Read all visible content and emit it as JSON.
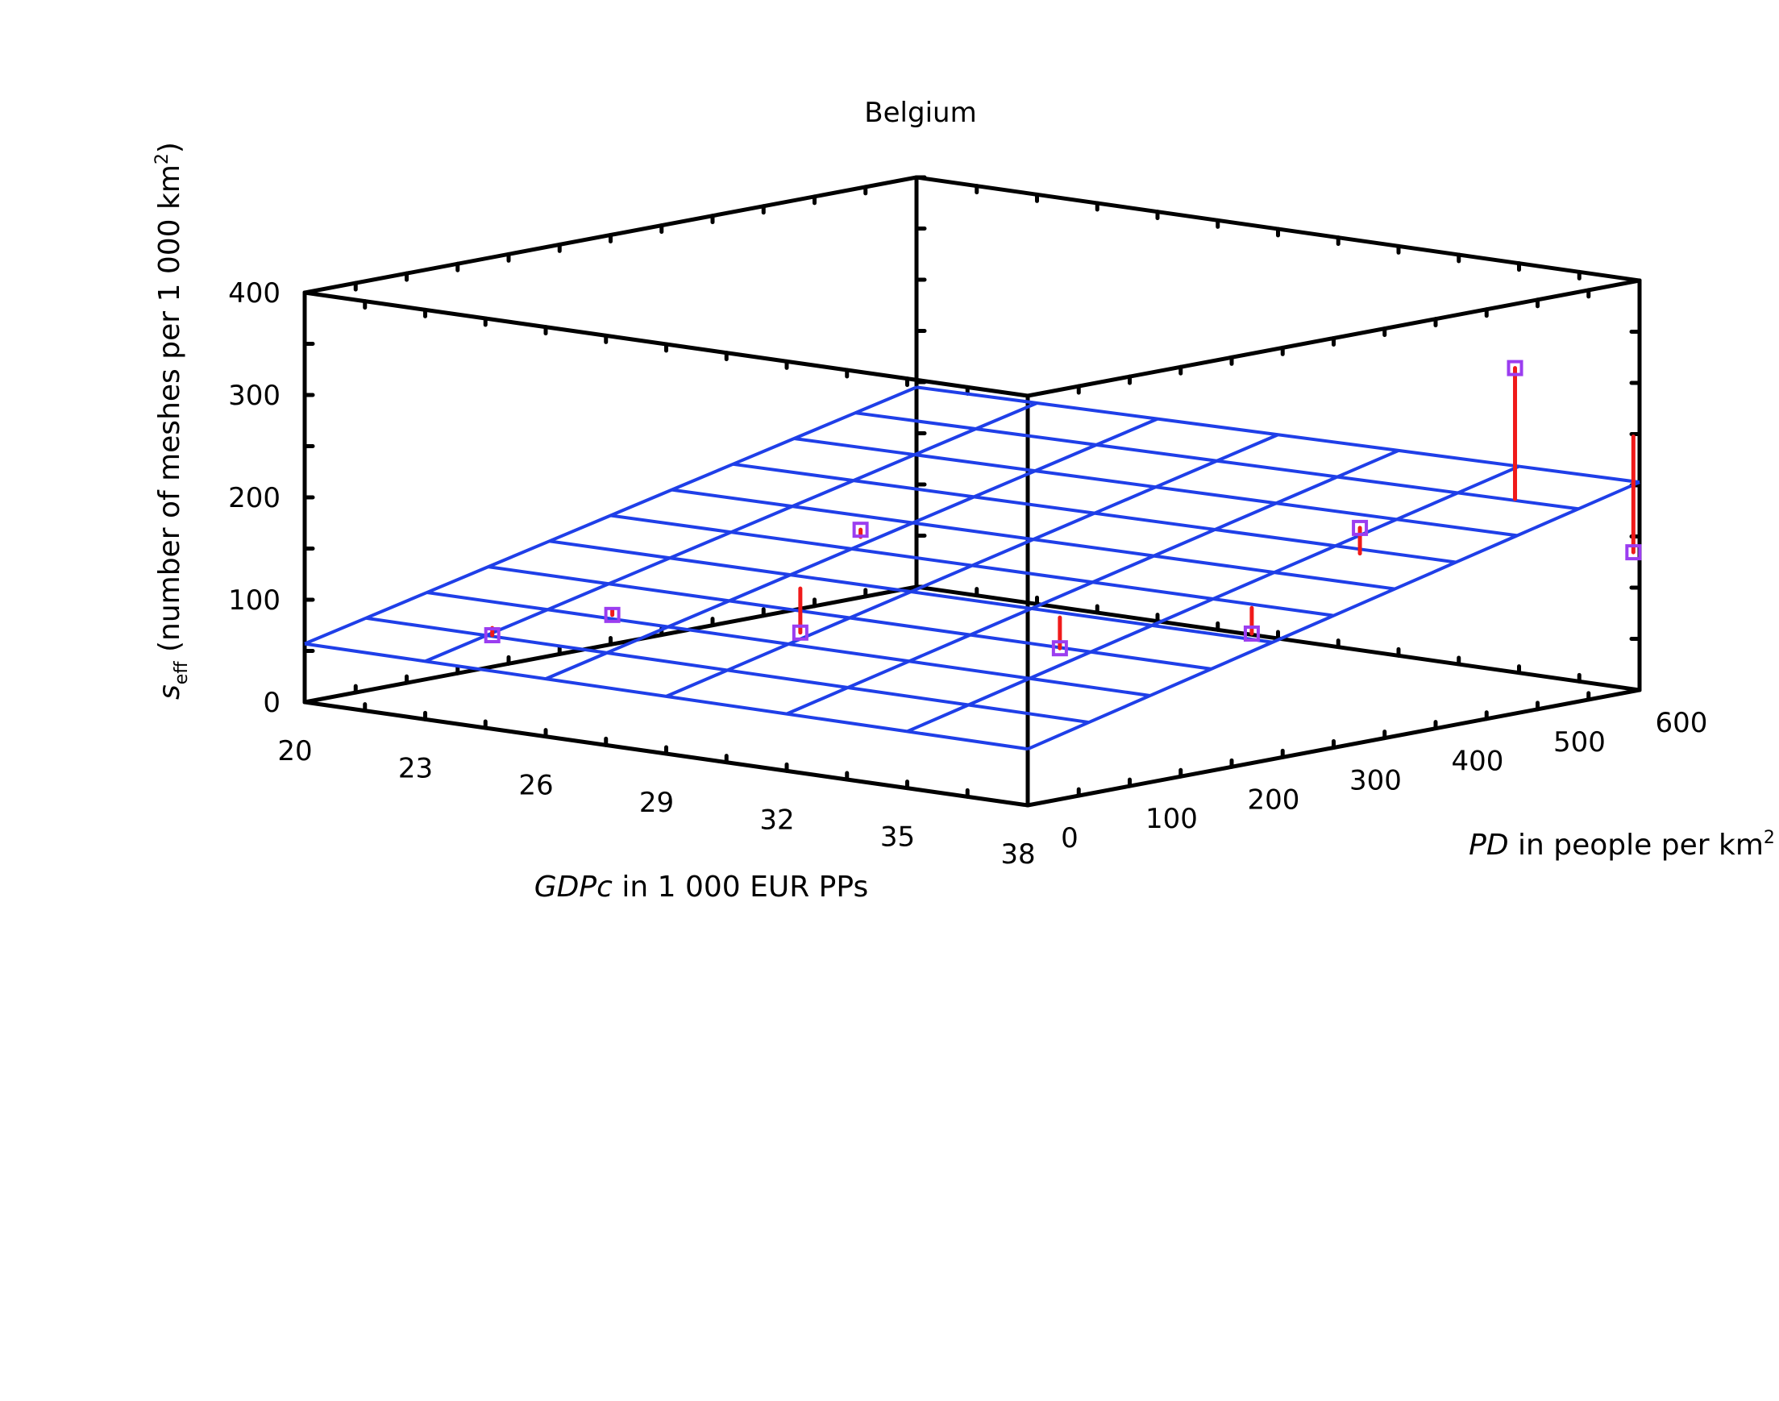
{
  "chart_data": {
    "type": "scatter3d",
    "title": "Belgium",
    "xlabel": {
      "italic": "GDPc",
      "rest": " in 1 000 EUR PPs"
    },
    "ylabel": {
      "italic": "PD",
      "rest": " in people per km",
      "sup": "2"
    },
    "zlabel": {
      "var": "s",
      "sub": "eff",
      "rest": " (number of meshes per 1 000 km",
      "sup": "2",
      "close": ")"
    },
    "x_ticks": [
      "20",
      "23",
      "26",
      "29",
      "32",
      "35",
      "38"
    ],
    "y_ticks": [
      "0",
      "100",
      "200",
      "300",
      "400",
      "500",
      "600"
    ],
    "z_ticks": [
      "0",
      "100",
      "200",
      "300",
      "400"
    ],
    "xlim": [
      20,
      38
    ],
    "ylim": [
      0,
      600
    ],
    "zlim": [
      0,
      400
    ],
    "plane": {
      "description": "fitted regression plane (wireframe)",
      "z_at": {
        "x20_y0": 57,
        "x38_y0": 55,
        "x20_y600": 195,
        "x38_y600": 203
      },
      "color": "#1f3fe8"
    },
    "points": [
      {
        "x": 23.4,
        "y": 50,
        "z": 75,
        "plane_z": 82
      },
      {
        "x": 25.5,
        "y": 85,
        "z": 100,
        "plane_z": 104
      },
      {
        "x": 28.0,
        "y": 230,
        "z": 170,
        "plane_z": 163
      },
      {
        "x": 29.8,
        "y": 100,
        "z": 104,
        "plane_z": 147
      },
      {
        "x": 35.5,
        "y": 130,
        "z": 115,
        "plane_z": 145
      },
      {
        "x": 38.5,
        "y": 200,
        "z": 133,
        "plane_z": 158
      },
      {
        "x": 38.4,
        "y": 310,
        "z": 215,
        "plane_z": 190
      },
      {
        "x": 38.2,
        "y": 470,
        "z": 340,
        "plane_z": 212
      },
      {
        "x": 38.1,
        "y": 590,
        "z": 137,
        "plane_z": 250
      }
    ],
    "point_color": "#9b3df0",
    "residual_color": "#f01a1a"
  }
}
